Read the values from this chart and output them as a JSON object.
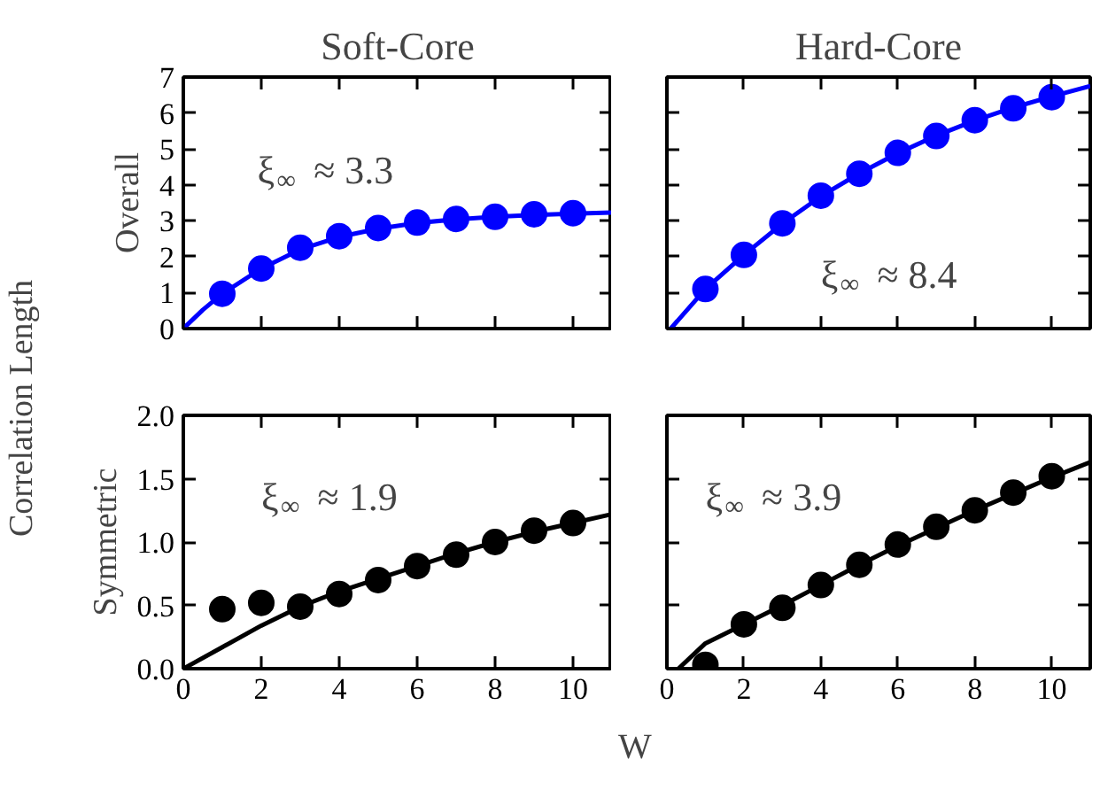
{
  "chart_data": [
    {
      "type": "scatter",
      "title": "Soft-Core",
      "ylabel": "Overall",
      "xlim": [
        0,
        11
      ],
      "xticks": [
        0,
        2,
        4,
        6,
        8,
        10
      ],
      "ylim": [
        0,
        7
      ],
      "yticks": [
        0,
        1,
        2,
        3,
        4,
        5,
        6,
        7
      ],
      "tick_labels": "y",
      "marker": "circle",
      "annotations": [
        "ξ$_{∞}$ ≈ 3.3",
        "Correlation Length"
      ],
      "series": [
        {
          "color": "#0000ff",
          "x": [
            1,
            2,
            3,
            4,
            5,
            6,
            7,
            8,
            9,
            10
          ],
          "values": [
            0.97,
            1.67,
            2.25,
            2.57,
            2.8,
            2.95,
            3.05,
            3.11,
            3.18,
            3.21
          ]
        },
        {
          "type": "line",
          "marker": "none",
          "color": "#0000ff",
          "x": [
            0,
            0.5,
            1,
            2,
            3,
            4,
            5,
            6,
            7,
            8,
            9,
            10,
            11
          ],
          "values": [
            0,
            0.52,
            0.97,
            1.67,
            2.2,
            2.55,
            2.78,
            2.94,
            3.04,
            3.11,
            3.16,
            3.2,
            3.23
          ]
        }
      ]
    },
    {
      "type": "scatter",
      "title": "Hard-Core",
      "xlim": [
        0,
        11
      ],
      "xticks": [
        0,
        2,
        4,
        6,
        8,
        10
      ],
      "ylim": [
        0,
        7
      ],
      "yticks": [
        0,
        1,
        2,
        3,
        4,
        5,
        6,
        7
      ],
      "tick_labels": false,
      "marker": "circle",
      "annotations": [
        "ξ$_{∞}$ ≈ 8.4"
      ],
      "series": [
        {
          "color": "#0000ff",
          "x": [
            1,
            2,
            3,
            4,
            5,
            6,
            7,
            8,
            9,
            10
          ],
          "values": [
            1.1,
            2.05,
            2.93,
            3.7,
            4.31,
            4.89,
            5.36,
            5.8,
            6.13,
            6.44
          ]
        },
        {
          "type": "line",
          "marker": "none",
          "color": "#0000ff",
          "x": [
            0.1,
            1,
            2,
            3,
            4,
            5,
            6,
            7,
            8,
            9,
            10,
            11
          ],
          "values": [
            0,
            1.1,
            2.05,
            2.92,
            3.68,
            4.32,
            4.88,
            5.37,
            5.79,
            6.15,
            6.46,
            6.75
          ]
        }
      ]
    },
    {
      "type": "scatter",
      "ylabel": "Symmetric",
      "xlim": [
        0,
        11
      ],
      "xticks": [
        0,
        2,
        4,
        6,
        8,
        10
      ],
      "ylim": [
        0,
        2
      ],
      "yticks": [
        {
          "value": 0,
          "label": "0.0"
        },
        {
          "value": 0.5,
          "label": "0.5"
        },
        {
          "value": 1,
          "label": "1.0"
        },
        {
          "value": 1.5,
          "label": "1.5"
        },
        {
          "value": 2,
          "label": "2.0"
        }
      ],
      "marker": "circle",
      "annotations": [
        "ξ$_{∞}$ ≈ 1.9"
      ],
      "series": [
        {
          "color": "#000000",
          "x": [
            1,
            2,
            3,
            4,
            5,
            6,
            7,
            8,
            9,
            10
          ],
          "values": [
            0.47,
            0.52,
            0.49,
            0.59,
            0.7,
            0.81,
            0.9,
            1.0,
            1.09,
            1.15
          ]
        },
        {
          "type": "line",
          "marker": "none",
          "color": "#000000",
          "x": [
            0,
            1,
            2,
            3,
            4,
            5,
            6,
            7,
            8,
            9,
            10,
            11
          ],
          "values": [
            0,
            0.17,
            0.34,
            0.49,
            0.61,
            0.71,
            0.81,
            0.91,
            1.0,
            1.08,
            1.15,
            1.22
          ]
        }
      ]
    },
    {
      "type": "scatter",
      "xlabel": "W",
      "xlim": [
        0,
        11
      ],
      "xticks": [
        0,
        2,
        4,
        6,
        8,
        10
      ],
      "ylim": [
        0,
        2
      ],
      "yticks": [
        0,
        0.5,
        1,
        1.5,
        2
      ],
      "tick_labels": "x",
      "marker": "circle",
      "annotations": [
        "ξ$_{∞}$ ≈ 3.9"
      ],
      "series": [
        {
          "color": "#000000",
          "x": [
            1,
            2,
            3,
            4,
            5,
            6,
            7,
            8,
            9,
            10
          ],
          "values": [
            0.03,
            0.35,
            0.48,
            0.66,
            0.82,
            0.98,
            1.12,
            1.25,
            1.39,
            1.52
          ]
        },
        {
          "type": "line",
          "marker": "none",
          "color": "#000000",
          "x": [
            0.3,
            1,
            2,
            3,
            4,
            5,
            6,
            7,
            8,
            9,
            10,
            11
          ],
          "values": [
            0,
            0.2,
            0.35,
            0.5,
            0.66,
            0.82,
            0.97,
            1.11,
            1.25,
            1.38,
            1.51,
            1.63
          ]
        }
      ]
    }
  ]
}
